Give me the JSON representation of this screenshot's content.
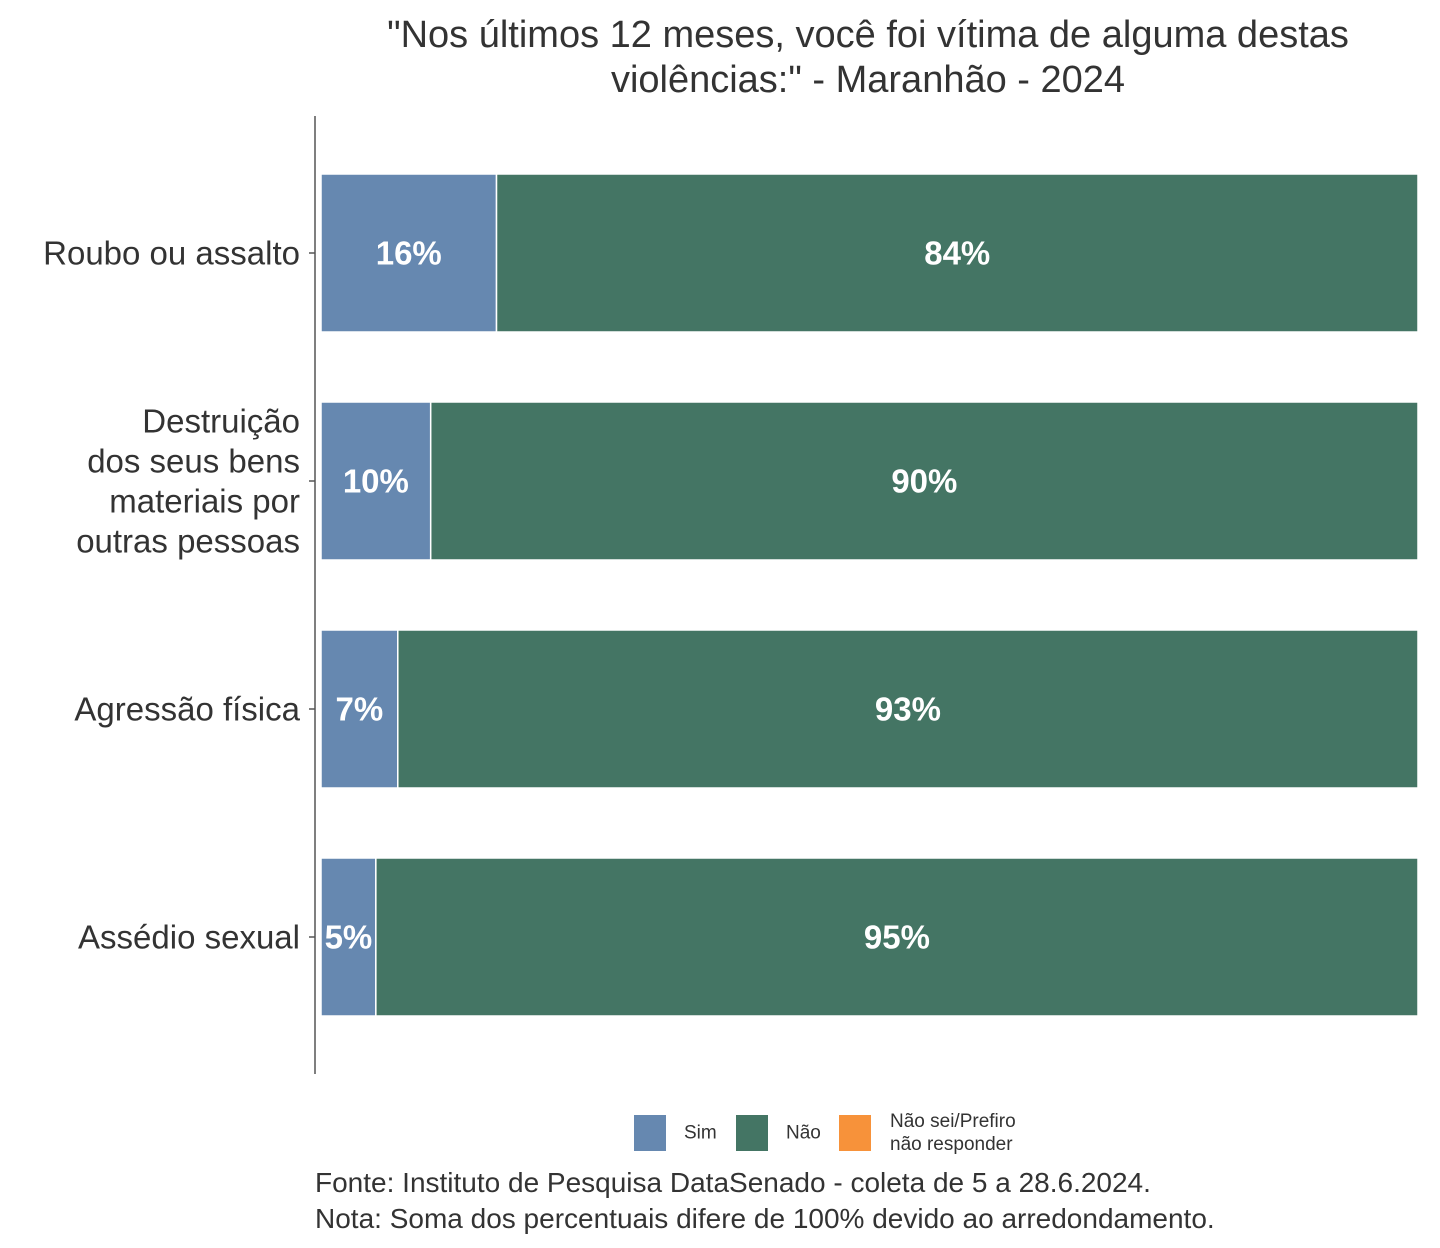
{
  "chart_data": {
    "type": "bar",
    "orientation": "horizontal",
    "stacked": true,
    "title": "\"Nos últimos 12 meses, você foi vítima de alguma destas violências:\" - Maranhão - 2024",
    "title_lines": [
      "\"Nos últimos 12 meses, você foi vítima de alguma destas",
      "violências:\" - Maranhão - 2024"
    ],
    "xlim": [
      0,
      100
    ],
    "grid": false,
    "legend_position": "bottom",
    "categories": [
      "Roubo ou assalto",
      "Destruição dos seus bens materiais por outras pessoas",
      "Agressão física",
      "Assédio sexual"
    ],
    "category_lines": [
      [
        "Roubo ou assalto"
      ],
      [
        "Destruição",
        "dos seus bens",
        "materiais por",
        "outras pessoas"
      ],
      [
        "Agressão física"
      ],
      [
        "Assédio sexual"
      ]
    ],
    "series": [
      {
        "name": "Sim",
        "color": "#6688B0",
        "values": [
          16,
          10,
          7,
          5
        ],
        "labels": [
          "16%",
          "10%",
          "7%",
          "5%"
        ]
      },
      {
        "name": "Não",
        "color": "#447564",
        "values": [
          84,
          90,
          93,
          95
        ],
        "labels": [
          "84%",
          "90%",
          "93%",
          "95%"
        ]
      },
      {
        "name": "Não sei/Prefiro não responder",
        "color": "#F7923A",
        "values": [
          0,
          0,
          0,
          0
        ],
        "labels": [
          "",
          "",
          "",
          ""
        ]
      }
    ],
    "legend_lines": [
      [
        "Sim"
      ],
      [
        "Não"
      ],
      [
        "Não sei/Prefiro",
        "não responder"
      ]
    ],
    "notes": [
      "Fonte: Instituto de Pesquisa DataSenado - coleta de 5 a 28.6.2024.",
      "Nota: Soma dos percentuais difere de 100% devido ao arredondamento."
    ]
  }
}
